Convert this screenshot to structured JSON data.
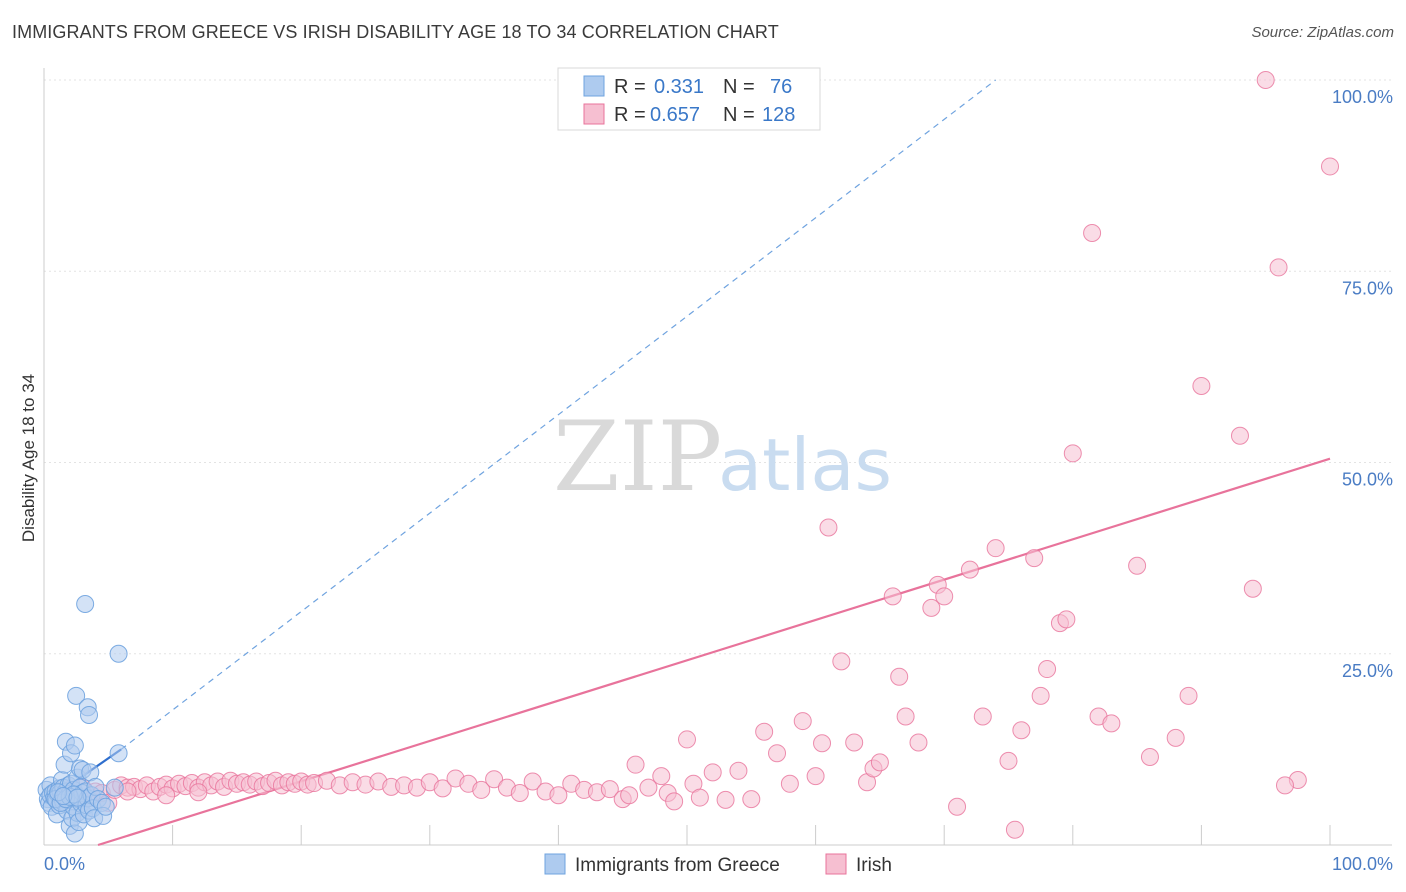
{
  "title": "IMMIGRANTS FROM GREECE VS IRISH DISABILITY AGE 18 TO 34 CORRELATION CHART",
  "source": "Source: ZipAtlas.com",
  "watermark": {
    "zip": "ZIP",
    "atlas": "atlas"
  },
  "colors": {
    "blue": "#6fa3df",
    "blue_fill": "#aecbef",
    "pink": "#e8739b",
    "pink_fill": "#f6bfd1",
    "tick_blue": "#4a7cc4"
  },
  "legend": {
    "r_label": "R =",
    "n_label": "N =",
    "rows": [
      {
        "r": "0.331",
        "n": "76",
        "series": "blue"
      },
      {
        "r": "0.657",
        "n": "128",
        "series": "pink"
      }
    ]
  },
  "chart_data": {
    "type": "scatter",
    "title": "IMMIGRANTS FROM GREECE VS IRISH DISABILITY AGE 18 TO 34 CORRELATION CHART",
    "xlabel": "",
    "ylabel": "Disability Age 18 to 34",
    "xlim": [
      0,
      100
    ],
    "ylim": [
      0,
      100
    ],
    "x_tick_labels": [
      "0.0%",
      "100.0%"
    ],
    "y_ticks": [
      25,
      50,
      75,
      100
    ],
    "y_tick_labels": [
      "25.0%",
      "50.0%",
      "75.0%",
      "100.0%"
    ],
    "series": [
      {
        "name": "Immigrants from Greece",
        "color": "#6fa3df",
        "trend": {
          "x0": 0,
          "y0": 5.5,
          "x1": 6.0,
          "y1": 12.5,
          "extended_to": [
            74,
            100
          ]
        },
        "points": [
          [
            0.2,
            7.2
          ],
          [
            0.3,
            6.0
          ],
          [
            0.4,
            5.5
          ],
          [
            0.5,
            7.8
          ],
          [
            0.5,
            6.5
          ],
          [
            0.6,
            5.0
          ],
          [
            0.7,
            6.8
          ],
          [
            0.8,
            6.2
          ],
          [
            0.9,
            7.0
          ],
          [
            1.0,
            5.8
          ],
          [
            1.0,
            4.0
          ],
          [
            1.1,
            6.6
          ],
          [
            1.2,
            7.4
          ],
          [
            1.2,
            5.2
          ],
          [
            1.3,
            6.9
          ],
          [
            1.4,
            8.5
          ],
          [
            1.4,
            6.1
          ],
          [
            1.5,
            7.5
          ],
          [
            1.5,
            5.6
          ],
          [
            1.6,
            6.4
          ],
          [
            1.6,
            10.5
          ],
          [
            1.7,
            13.5
          ],
          [
            1.7,
            7.0
          ],
          [
            1.8,
            4.5
          ],
          [
            1.8,
            6.2
          ],
          [
            1.9,
            7.8
          ],
          [
            1.9,
            5.9
          ],
          [
            2.0,
            6.7
          ],
          [
            2.0,
            2.5
          ],
          [
            2.1,
            12.0
          ],
          [
            2.1,
            8.0
          ],
          [
            2.2,
            6.3
          ],
          [
            2.2,
            3.5
          ],
          [
            2.3,
            5.0
          ],
          [
            2.3,
            7.2
          ],
          [
            2.4,
            13.0
          ],
          [
            2.4,
            1.5
          ],
          [
            2.5,
            6.6
          ],
          [
            2.5,
            19.5
          ],
          [
            2.6,
            4.2
          ],
          [
            2.6,
            8.8
          ],
          [
            2.7,
            6.0
          ],
          [
            2.7,
            3.0
          ],
          [
            2.8,
            7.5
          ],
          [
            2.8,
            10.0
          ],
          [
            2.9,
            5.4
          ],
          [
            3.0,
            9.8
          ],
          [
            3.0,
            6.8
          ],
          [
            3.1,
            4.0
          ],
          [
            3.2,
            31.5
          ],
          [
            3.2,
            7.0
          ],
          [
            3.3,
            5.2
          ],
          [
            3.4,
            18.0
          ],
          [
            3.4,
            6.1
          ],
          [
            3.5,
            17.0
          ],
          [
            3.5,
            4.5
          ],
          [
            3.6,
            9.5
          ],
          [
            3.7,
            6.5
          ],
          [
            3.8,
            4.8
          ],
          [
            3.9,
            3.5
          ],
          [
            4.0,
            7.6
          ],
          [
            4.2,
            6.0
          ],
          [
            4.5,
            5.5
          ],
          [
            4.6,
            3.8
          ],
          [
            4.8,
            5.0
          ],
          [
            5.5,
            7.5
          ],
          [
            5.8,
            25.0
          ],
          [
            5.8,
            12.0
          ],
          [
            0.9,
            6.0
          ],
          [
            1.3,
            5.5
          ],
          [
            1.7,
            6.0
          ],
          [
            2.0,
            6.3
          ],
          [
            2.3,
            6.6
          ],
          [
            1.1,
            6.9
          ],
          [
            1.5,
            6.4
          ],
          [
            2.6,
            6.2
          ]
        ]
      },
      {
        "name": "Irish",
        "color": "#e8739b",
        "trend": {
          "x0": 4.2,
          "y0": 0,
          "x1": 100,
          "y1": 50.5
        },
        "points": [
          [
            1.0,
            7.0
          ],
          [
            1.5,
            6.8
          ],
          [
            2.0,
            7.2
          ],
          [
            2.5,
            6.5
          ],
          [
            3.0,
            7.5
          ],
          [
            3.5,
            6.2
          ],
          [
            4.0,
            7.0
          ],
          [
            4.5,
            6.8
          ],
          [
            5.0,
            5.5
          ],
          [
            5.5,
            7.2
          ],
          [
            6.0,
            7.8
          ],
          [
            6.5,
            7.5
          ],
          [
            7.0,
            7.6
          ],
          [
            7.5,
            7.3
          ],
          [
            8.0,
            7.8
          ],
          [
            8.5,
            7.0
          ],
          [
            9.0,
            7.6
          ],
          [
            9.5,
            7.9
          ],
          [
            10.0,
            7.4
          ],
          [
            10.5,
            8.0
          ],
          [
            11.0,
            7.7
          ],
          [
            11.5,
            8.1
          ],
          [
            12.0,
            7.5
          ],
          [
            12.5,
            8.2
          ],
          [
            13.0,
            7.8
          ],
          [
            13.5,
            8.3
          ],
          [
            14.0,
            7.6
          ],
          [
            14.5,
            8.4
          ],
          [
            15.0,
            8.0
          ],
          [
            15.5,
            8.2
          ],
          [
            16.0,
            7.9
          ],
          [
            16.5,
            8.3
          ],
          [
            17.0,
            7.7
          ],
          [
            17.5,
            8.1
          ],
          [
            18.0,
            8.4
          ],
          [
            18.5,
            7.8
          ],
          [
            19.0,
            8.2
          ],
          [
            19.5,
            8.0
          ],
          [
            20.0,
            8.3
          ],
          [
            20.5,
            7.9
          ],
          [
            21.0,
            8.1
          ],
          [
            22.0,
            8.4
          ],
          [
            23.0,
            7.8
          ],
          [
            24.0,
            8.2
          ],
          [
            25.0,
            7.9
          ],
          [
            26.0,
            8.3
          ],
          [
            27.0,
            7.6
          ],
          [
            28.0,
            7.8
          ],
          [
            29.0,
            7.5
          ],
          [
            30.0,
            8.2
          ],
          [
            31.0,
            7.4
          ],
          [
            32.0,
            8.7
          ],
          [
            33.0,
            8.0
          ],
          [
            34.0,
            7.2
          ],
          [
            35.0,
            8.6
          ],
          [
            36.0,
            7.5
          ],
          [
            37.0,
            6.8
          ],
          [
            38.0,
            8.3
          ],
          [
            39.0,
            7.0
          ],
          [
            40.0,
            6.5
          ],
          [
            41.0,
            8.0
          ],
          [
            42.0,
            7.2
          ],
          [
            43.0,
            6.9
          ],
          [
            44.0,
            7.3
          ],
          [
            45.0,
            6.0
          ],
          [
            45.5,
            6.5
          ],
          [
            46.0,
            10.5
          ],
          [
            47.0,
            7.5
          ],
          [
            48.0,
            9.0
          ],
          [
            48.5,
            6.8
          ],
          [
            49.0,
            5.7
          ],
          [
            50.0,
            13.8
          ],
          [
            50.5,
            8.0
          ],
          [
            51.0,
            6.2
          ],
          [
            52.0,
            9.5
          ],
          [
            53.0,
            5.9
          ],
          [
            54.0,
            9.7
          ],
          [
            55.0,
            6.0
          ],
          [
            56.0,
            14.8
          ],
          [
            57.0,
            12.0
          ],
          [
            58.0,
            8.0
          ],
          [
            59.0,
            16.2
          ],
          [
            60.0,
            9.0
          ],
          [
            60.5,
            13.3
          ],
          [
            61.0,
            41.5
          ],
          [
            62.0,
            24.0
          ],
          [
            63.0,
            13.4
          ],
          [
            64.0,
            8.2
          ],
          [
            64.5,
            10.0
          ],
          [
            65.0,
            10.8
          ],
          [
            66.0,
            32.5
          ],
          [
            66.5,
            22.0
          ],
          [
            67.0,
            16.8
          ],
          [
            68.0,
            13.4
          ],
          [
            69.0,
            31.0
          ],
          [
            69.5,
            34.0
          ],
          [
            70.0,
            32.5
          ],
          [
            71.0,
            5.0
          ],
          [
            72.0,
            36.0
          ],
          [
            73.0,
            16.8
          ],
          [
            74.0,
            38.8
          ],
          [
            75.0,
            11.0
          ],
          [
            75.5,
            2.0
          ],
          [
            76.0,
            15.0
          ],
          [
            77.0,
            37.5
          ],
          [
            77.5,
            19.5
          ],
          [
            78.0,
            23.0
          ],
          [
            79.0,
            29.0
          ],
          [
            79.5,
            29.5
          ],
          [
            80.0,
            51.2
          ],
          [
            81.5,
            80.0
          ],
          [
            82.0,
            16.8
          ],
          [
            83.0,
            15.9
          ],
          [
            85.0,
            36.5
          ],
          [
            86.0,
            11.5
          ],
          [
            88.0,
            14.0
          ],
          [
            89.0,
            19.5
          ],
          [
            90.0,
            60.0
          ],
          [
            93.0,
            53.5
          ],
          [
            94.0,
            33.5
          ],
          [
            95.0,
            100.0
          ],
          [
            96.0,
            75.5
          ],
          [
            97.5,
            8.5
          ],
          [
            100.0,
            88.7
          ],
          [
            96.5,
            7.8
          ],
          [
            6.5,
            7.0
          ],
          [
            9.5,
            6.5
          ],
          [
            12.0,
            6.9
          ]
        ]
      }
    ]
  },
  "bottom_legend": [
    {
      "label": "Immigrants from Greece",
      "series": "blue"
    },
    {
      "label": "Irish",
      "series": "pink"
    }
  ]
}
